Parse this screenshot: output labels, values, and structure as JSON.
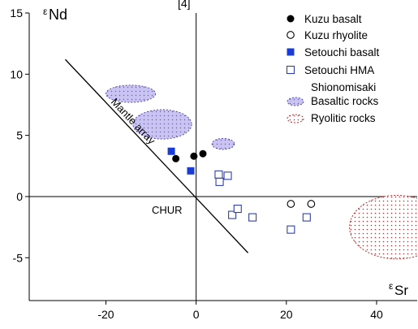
{
  "chart_data": {
    "type": "scatter",
    "title_fragment": "[4]",
    "xlabel": "Sr",
    "xlabel_prefix": "ε",
    "ylabel": "Nd",
    "ylabel_prefix": "ε",
    "xlim": [
      -37,
      49
    ],
    "ylim": [
      -8.5,
      15
    ],
    "x_ticks": [
      -20,
      0,
      20,
      40
    ],
    "y_ticks": [
      15,
      10,
      5,
      0,
      -5
    ],
    "x_tick_labels": [
      "-20",
      "0",
      "20",
      "40"
    ],
    "y_tick_labels": [
      "15",
      "10",
      "5",
      "0",
      "-5"
    ],
    "grid": false,
    "legend_position": "top-right",
    "series": [
      {
        "name": "Kuzu basalt",
        "marker": "circle-filled",
        "color": "#000000",
        "points": [
          [
            -4.5,
            3.1
          ],
          [
            -0.5,
            3.3
          ],
          [
            1.5,
            3.5
          ]
        ]
      },
      {
        "name": "Kuzu rhyolite",
        "marker": "circle-open",
        "color": "#000000",
        "points": [
          [
            21,
            -0.6
          ],
          [
            25.5,
            -0.6
          ]
        ]
      },
      {
        "name": "Setouchi basalt",
        "marker": "square-filled",
        "color": "#1a3cd6",
        "points": [
          [
            -5.5,
            3.7
          ],
          [
            -1.2,
            2.1
          ]
        ]
      },
      {
        "name": "Setouchi HMA",
        "marker": "square-open",
        "color": "#3040a8",
        "points": [
          [
            5,
            1.8
          ],
          [
            5.2,
            1.2
          ],
          [
            7,
            1.7
          ],
          [
            8,
            -1.5
          ],
          [
            9.2,
            -1.0
          ],
          [
            12.5,
            -1.7
          ],
          [
            24.5,
            -1.7
          ],
          [
            21,
            -2.7
          ]
        ]
      }
    ],
    "regions": [
      {
        "legend": "Shionomisaki Basaltic rocks",
        "pattern": "dotted-fill",
        "color": "#c9c4f2",
        "ellipses": [
          {
            "cx": -14.5,
            "cy": 8.4,
            "rx": 5.5,
            "ry": 0.7
          },
          {
            "cx": -7.5,
            "cy": 5.9,
            "rx": 6.5,
            "ry": 1.2
          },
          {
            "cx": 6,
            "cy": 4.3,
            "rx": 2.5,
            "ry": 0.45
          }
        ]
      },
      {
        "legend": "Ryolitic rocks",
        "pattern": "dotted-outline",
        "color": "#ffffff",
        "stroke": "#c03030",
        "ellipses": [
          {
            "cx": 44.5,
            "cy": -2.5,
            "rx": 10.5,
            "ry": 2.6
          }
        ]
      }
    ],
    "reference_line": {
      "label": "Mantle array",
      "points": [
        [
          -29,
          11.2
        ],
        [
          11.5,
          -4.6
        ]
      ]
    },
    "reference_point": {
      "label": "CHUR",
      "x": 0,
      "y": 0
    },
    "legend": [
      {
        "label": "Kuzu basalt",
        "marker": "circle-filled"
      },
      {
        "label": "Kuzu rhyolite",
        "marker": "circle-open"
      },
      {
        "label": "Setouchi basalt",
        "marker": "square-filled"
      },
      {
        "label": "Setouchi HMA",
        "marker": "square-open"
      },
      {
        "label": "Shionomisaki",
        "marker": "none"
      },
      {
        "label": "Basaltic rocks",
        "marker": "ellipse-dotted-fill"
      },
      {
        "label": "Ryolitic rocks",
        "marker": "ellipse-dotted-outline"
      }
    ]
  }
}
